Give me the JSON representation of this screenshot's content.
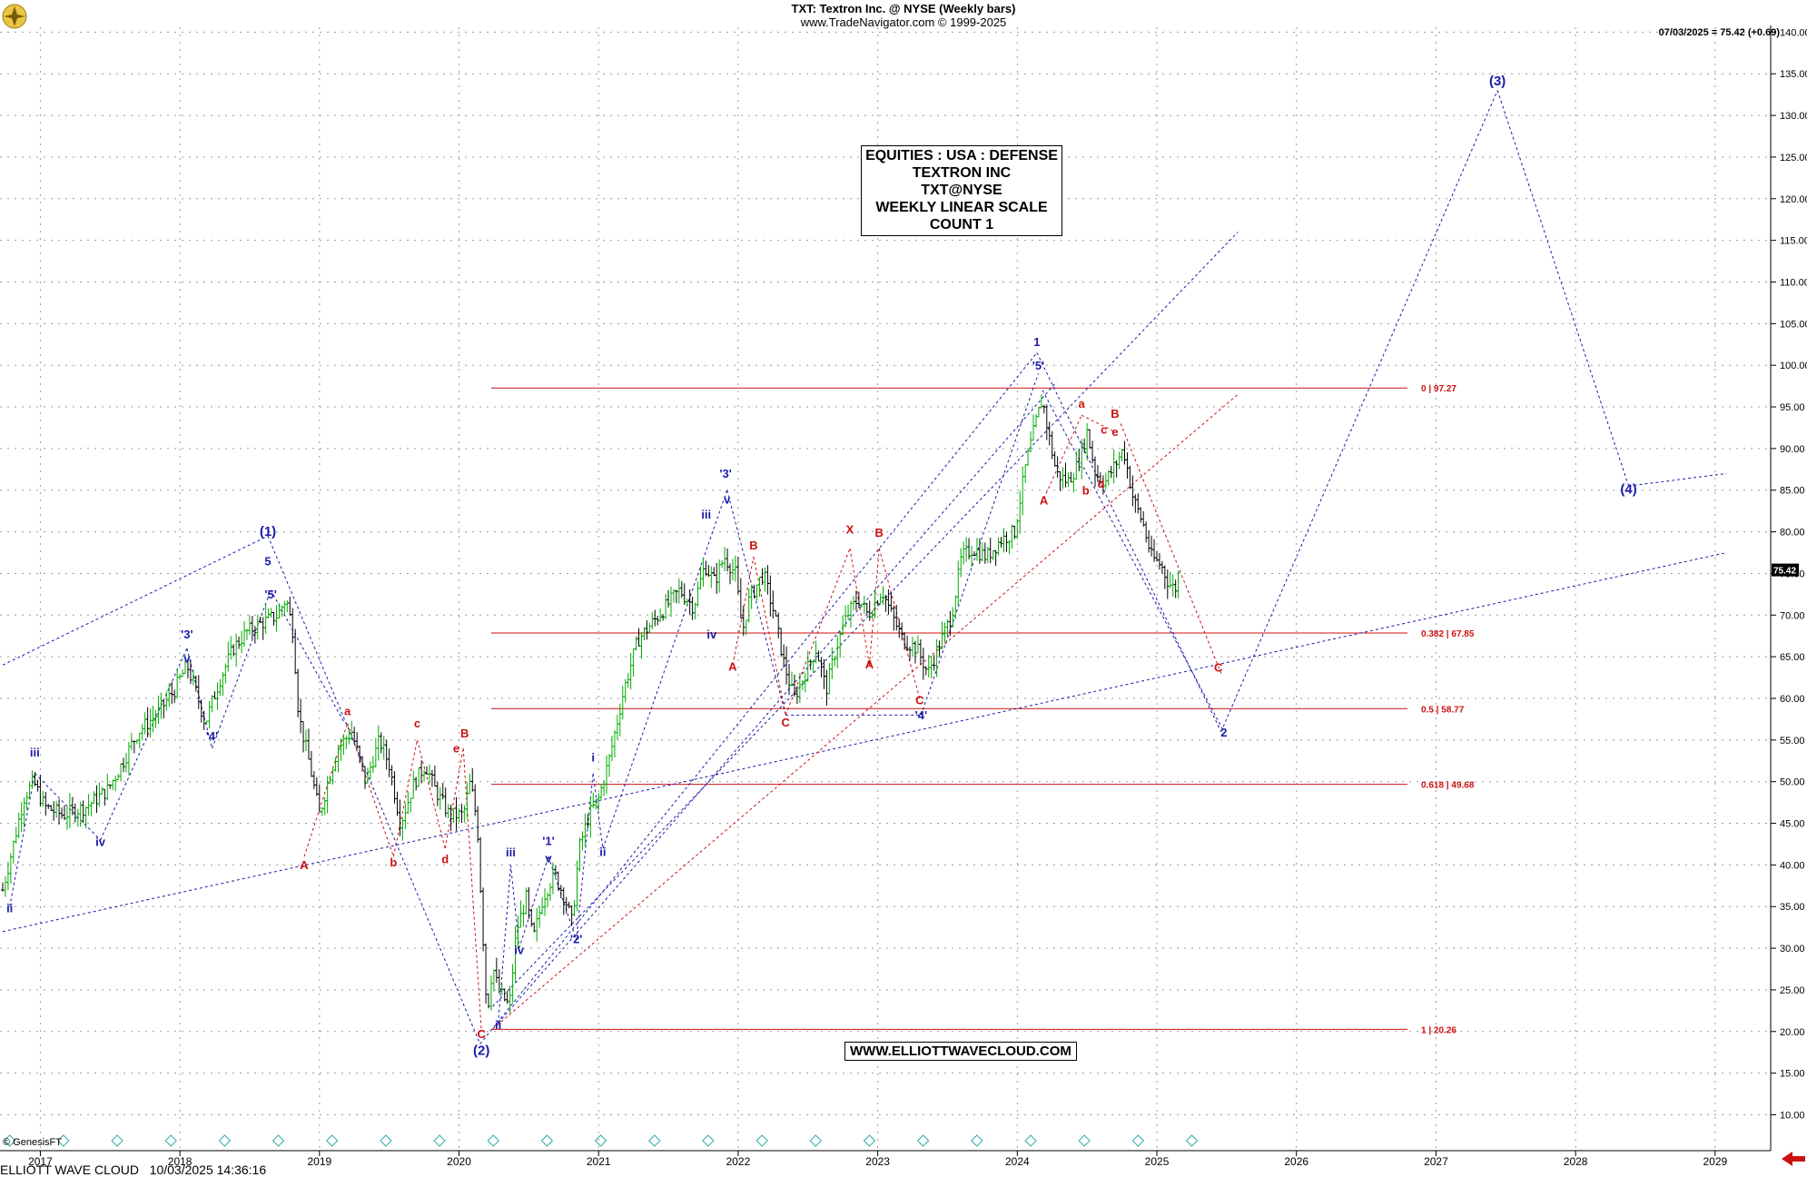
{
  "header": {
    "line1": "TXT:  Textron Inc. @ NYSE  (Weekly bars)",
    "line2": "www.TradeNavigator.com © 1999-2025",
    "last_quote": "07/03/2025 = 75.42 (+0.69)"
  },
  "infobox": [
    "EQUITIES : USA : DEFENSE",
    "TEXTRON INC",
    "TXT@NYSE",
    "WEEKLY LINEAR SCALE",
    "COUNT 1"
  ],
  "website": "WWW.ELLIOTTWAVECLOUD.COM",
  "footer": "ELLIOTT WAVE CLOUD   10/03/2025 14:36:16",
  "genesis": "© GenesisFT",
  "price_tag": "75.42",
  "colors": {
    "blue": "#1a1aa8",
    "red": "#cc1111",
    "bull": "#00aa00",
    "bear": "#000000",
    "grid": "#9a9a9a"
  },
  "chart_data": {
    "type": "candlestick",
    "title": "TXT:  Textron Inc. @ NYSE  (Weekly bars)",
    "x_ticks": [
      "2017",
      "2018",
      "2019",
      "2020",
      "2021",
      "2022",
      "2023",
      "2024",
      "2025",
      "2026",
      "2027",
      "2028",
      "2029"
    ],
    "y_ticks": [
      "10.00",
      "15.00",
      "20.00",
      "25.00",
      "30.00",
      "35.00",
      "40.00",
      "45.00",
      "50.00",
      "55.00",
      "60.00",
      "65.00",
      "70.00",
      "75.00",
      "80.00",
      "85.00",
      "90.00",
      "95.00",
      "100.00",
      "105.00",
      "110.00",
      "115.00",
      "120.00",
      "125.00",
      "130.00",
      "135.00",
      "140.00"
    ],
    "ylim": [
      7,
      141
    ],
    "xlim": [
      2016.75,
      2029.1
    ],
    "last_price": 75.42,
    "price_path": [
      [
        2016.75,
        37
      ],
      [
        2016.82,
        42
      ],
      [
        2016.9,
        48
      ],
      [
        2016.97,
        50
      ],
      [
        2017.05,
        47
      ],
      [
        2017.18,
        46
      ],
      [
        2017.35,
        47
      ],
      [
        2017.5,
        49
      ],
      [
        2017.6,
        52
      ],
      [
        2017.72,
        56
      ],
      [
        2017.85,
        58
      ],
      [
        2017.98,
        61
      ],
      [
        2018.07,
        64
      ],
      [
        2018.15,
        60
      ],
      [
        2018.2,
        57
      ],
      [
        2018.3,
        62
      ],
      [
        2018.4,
        66
      ],
      [
        2018.5,
        68
      ],
      [
        2018.6,
        69
      ],
      [
        2018.72,
        70
      ],
      [
        2018.78,
        72
      ],
      [
        2018.83,
        68
      ],
      [
        2018.87,
        58
      ],
      [
        2018.95,
        52
      ],
      [
        2019.02,
        46
      ],
      [
        2019.08,
        50
      ],
      [
        2019.15,
        54
      ],
      [
        2019.25,
        56
      ],
      [
        2019.35,
        50
      ],
      [
        2019.45,
        55
      ],
      [
        2019.52,
        52
      ],
      [
        2019.6,
        45
      ],
      [
        2019.7,
        50
      ],
      [
        2019.78,
        52
      ],
      [
        2019.85,
        49
      ],
      [
        2019.95,
        46
      ],
      [
        2020.05,
        46
      ],
      [
        2020.1,
        50
      ],
      [
        2020.15,
        45
      ],
      [
        2020.18,
        35
      ],
      [
        2020.22,
        22
      ],
      [
        2020.26,
        28
      ],
      [
        2020.3,
        25
      ],
      [
        2020.38,
        23
      ],
      [
        2020.43,
        32
      ],
      [
        2020.5,
        36
      ],
      [
        2020.55,
        31
      ],
      [
        2020.62,
        36
      ],
      [
        2020.7,
        39
      ],
      [
        2020.78,
        36
      ],
      [
        2020.83,
        33
      ],
      [
        2020.88,
        42
      ],
      [
        2020.95,
        46
      ],
      [
        2021.02,
        48
      ],
      [
        2021.1,
        53
      ],
      [
        2021.2,
        61
      ],
      [
        2021.3,
        67
      ],
      [
        2021.4,
        69
      ],
      [
        2021.5,
        71
      ],
      [
        2021.6,
        73
      ],
      [
        2021.7,
        71
      ],
      [
        2021.78,
        76
      ],
      [
        2021.85,
        74
      ],
      [
        2021.92,
        77
      ],
      [
        2022.0,
        75
      ],
      [
        2022.05,
        68
      ],
      [
        2022.1,
        72
      ],
      [
        2022.2,
        75
      ],
      [
        2022.28,
        70
      ],
      [
        2022.35,
        64
      ],
      [
        2022.42,
        60
      ],
      [
        2022.5,
        63
      ],
      [
        2022.58,
        66
      ],
      [
        2022.65,
        61
      ],
      [
        2022.72,
        66
      ],
      [
        2022.8,
        70
      ],
      [
        2022.88,
        72
      ],
      [
        2022.95,
        70
      ],
      [
        2023.05,
        73
      ],
      [
        2023.12,
        70
      ],
      [
        2023.2,
        67
      ],
      [
        2023.3,
        66
      ],
      [
        2023.38,
        63
      ],
      [
        2023.45,
        66
      ],
      [
        2023.55,
        70
      ],
      [
        2023.62,
        77
      ],
      [
        2023.7,
        78
      ],
      [
        2023.8,
        77
      ],
      [
        2023.9,
        79
      ],
      [
        2024.0,
        80
      ],
      [
        2024.08,
        88
      ],
      [
        2024.15,
        93
      ],
      [
        2024.2,
        96
      ],
      [
        2024.24,
        92
      ],
      [
        2024.3,
        87
      ],
      [
        2024.38,
        86
      ],
      [
        2024.45,
        88
      ],
      [
        2024.52,
        92
      ],
      [
        2024.58,
        87
      ],
      [
        2024.65,
        86
      ],
      [
        2024.72,
        88
      ],
      [
        2024.78,
        90
      ],
      [
        2024.85,
        84
      ],
      [
        2024.92,
        81
      ],
      [
        2024.98,
        77
      ],
      [
        2025.05,
        76
      ],
      [
        2025.1,
        74
      ],
      [
        2025.15,
        73
      ],
      [
        2025.18,
        75.42
      ]
    ],
    "fib_levels": [
      {
        "label": "0 | 97.27",
        "value": 97.27
      },
      {
        "label": "0.382 | 67.85",
        "value": 67.85
      },
      {
        "label": "0.5 | 58.77",
        "value": 58.77
      },
      {
        "label": "0.618 | 49.68",
        "value": 49.68
      },
      {
        "label": "1 | 20.26",
        "value": 20.26
      }
    ],
    "blue_wave_path": [
      [
        2018.65,
        79.5
      ],
      [
        2020.17,
        18.5
      ],
      [
        2024.16,
        101.5
      ],
      [
        2025.48,
        56
      ],
      [
        2027.46,
        133
      ],
      [
        2028.4,
        85.5
      ]
    ],
    "wave_labels": [
      {
        "t": "(1)",
        "x": 2018.65,
        "y": 79.5,
        "c": "blue",
        "big": 1
      },
      {
        "t": "5",
        "x": 2018.65,
        "y": 76,
        "c": "blue"
      },
      {
        "t": "'5'",
        "x": 2018.67,
        "y": 72,
        "c": "blue"
      },
      {
        "t": "'3'",
        "x": 2018.07,
        "y": 67.2,
        "c": "blue"
      },
      {
        "t": "v",
        "x": 2018.07,
        "y": 64.3,
        "c": "blue"
      },
      {
        "t": "'4'",
        "x": 2018.25,
        "y": 55,
        "c": "blue"
      },
      {
        "t": "iii",
        "x": 2016.98,
        "y": 53,
        "c": "blue"
      },
      {
        "t": "iv",
        "x": 2017.45,
        "y": 42.3,
        "c": "blue"
      },
      {
        "t": "ii",
        "x": 2016.8,
        "y": 34.3,
        "c": "blue"
      },
      {
        "t": "a",
        "x": 2019.22,
        "y": 58,
        "c": "red"
      },
      {
        "t": "A",
        "x": 2018.91,
        "y": 39.5,
        "c": "red"
      },
      {
        "t": "b",
        "x": 2019.55,
        "y": 39.8,
        "c": "red"
      },
      {
        "t": "c",
        "x": 2019.72,
        "y": 56.5,
        "c": "red"
      },
      {
        "t": "d",
        "x": 2019.92,
        "y": 40.2,
        "c": "red"
      },
      {
        "t": "e",
        "x": 2020.0,
        "y": 53.5,
        "c": "red"
      },
      {
        "t": "B",
        "x": 2020.06,
        "y": 55.3,
        "c": "red"
      },
      {
        "t": "C",
        "x": 2020.18,
        "y": 19.2,
        "c": "red"
      },
      {
        "t": "(2)",
        "x": 2020.18,
        "y": 17.2,
        "c": "blue",
        "big": 1
      },
      {
        "t": "ii",
        "x": 2020.3,
        "y": 20.3,
        "c": "blue"
      },
      {
        "t": "iii",
        "x": 2020.39,
        "y": 41,
        "c": "blue"
      },
      {
        "t": "iv",
        "x": 2020.45,
        "y": 29.3,
        "c": "blue"
      },
      {
        "t": "'1'",
        "x": 2020.66,
        "y": 42.4,
        "c": "blue"
      },
      {
        "t": "v",
        "x": 2020.66,
        "y": 40.3,
        "c": "blue"
      },
      {
        "t": "'2'",
        "x": 2020.86,
        "y": 30.6,
        "c": "blue"
      },
      {
        "t": "i",
        "x": 2020.98,
        "y": 52.4,
        "c": "blue"
      },
      {
        "t": "ii",
        "x": 2021.05,
        "y": 41.1,
        "c": "blue"
      },
      {
        "t": "iii",
        "x": 2021.79,
        "y": 81.6,
        "c": "blue"
      },
      {
        "t": "'3'",
        "x": 2021.93,
        "y": 86.5,
        "c": "blue"
      },
      {
        "t": "v",
        "x": 2021.94,
        "y": 83.4,
        "c": "blue"
      },
      {
        "t": "iv",
        "x": 2021.83,
        "y": 67.2,
        "c": "blue"
      },
      {
        "t": "A",
        "x": 2021.98,
        "y": 63.3,
        "c": "red"
      },
      {
        "t": "B",
        "x": 2022.13,
        "y": 77.9,
        "c": "red"
      },
      {
        "t": "C",
        "x": 2022.36,
        "y": 56.6,
        "c": "red"
      },
      {
        "t": "X",
        "x": 2022.82,
        "y": 79.8,
        "c": "red"
      },
      {
        "t": "B",
        "x": 2023.03,
        "y": 79.4,
        "c": "red"
      },
      {
        "t": "A",
        "x": 2022.96,
        "y": 63.6,
        "c": "red"
      },
      {
        "t": "C",
        "x": 2023.32,
        "y": 59.3,
        "c": "red"
      },
      {
        "t": "'4'",
        "x": 2023.33,
        "y": 57.5,
        "c": "blue"
      },
      {
        "t": "1",
        "x": 2024.16,
        "y": 102.3,
        "c": "blue"
      },
      {
        "t": "'5'",
        "x": 2024.17,
        "y": 99.5,
        "c": "blue"
      },
      {
        "t": "A",
        "x": 2024.21,
        "y": 83.3,
        "c": "red"
      },
      {
        "t": "a",
        "x": 2024.48,
        "y": 94.9,
        "c": "red"
      },
      {
        "t": "b",
        "x": 2024.51,
        "y": 84.5,
        "c": "red"
      },
      {
        "t": "c",
        "x": 2024.64,
        "y": 91.8,
        "c": "red"
      },
      {
        "t": "d",
        "x": 2024.62,
        "y": 85.3,
        "c": "red"
      },
      {
        "t": "B",
        "x": 2024.72,
        "y": 93.7,
        "c": "red"
      },
      {
        "t": "e",
        "x": 2024.72,
        "y": 91.5,
        "c": "red"
      },
      {
        "t": "C",
        "x": 2025.46,
        "y": 63.2,
        "c": "red"
      },
      {
        "t": "2",
        "x": 2025.5,
        "y": 55.4,
        "c": "blue"
      },
      {
        "t": "(3)",
        "x": 2027.46,
        "y": 133.6,
        "c": "blue",
        "big": 1
      },
      {
        "t": "(4)",
        "x": 2028.4,
        "y": 84.6,
        "c": "blue",
        "big": 1
      }
    ]
  }
}
